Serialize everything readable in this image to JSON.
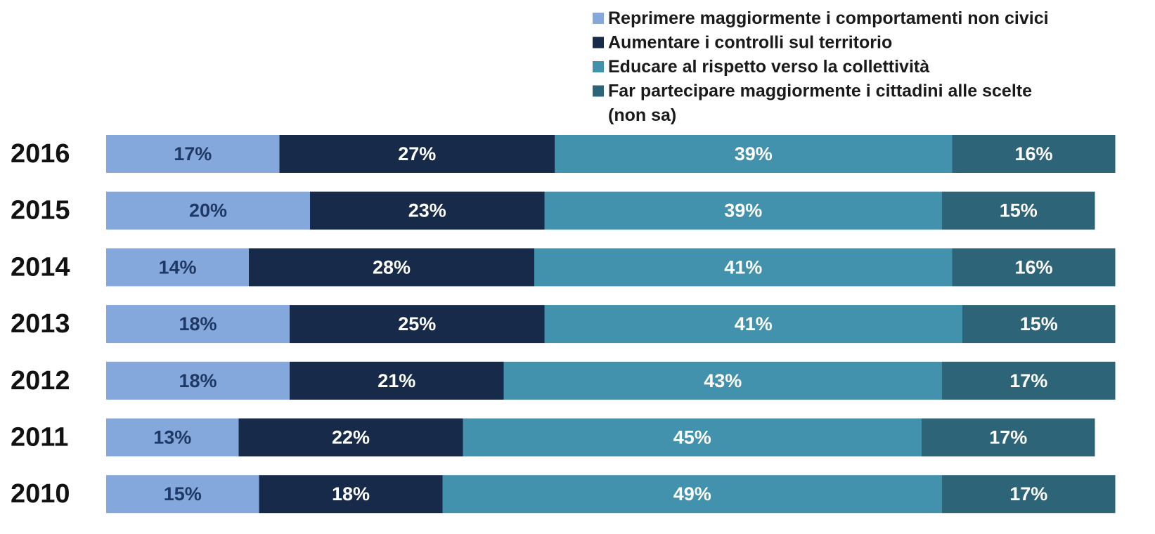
{
  "chart_data": {
    "type": "bar",
    "orientation": "horizontal",
    "stacked": true,
    "categories": [
      "2016",
      "2015",
      "2014",
      "2013",
      "2012",
      "2011",
      "2010"
    ],
    "series": [
      {
        "name": "Reprimere maggiormente i comportamenti non civici",
        "color": "#85a8dc",
        "label_color": "#1f3864",
        "values": [
          17,
          20,
          14,
          18,
          18,
          13,
          15
        ],
        "value_labels": [
          "17%",
          "20%",
          "14%",
          "18%",
          "18%",
          "13%",
          "15%"
        ]
      },
      {
        "name": "Aumentare i controlli sul territorio",
        "color": "#172a4a",
        "label_color": "#ffffff",
        "values": [
          27,
          23,
          28,
          25,
          21,
          22,
          18
        ],
        "value_labels": [
          "27%",
          "23%",
          "28%",
          "25%",
          "21%",
          "22%",
          "18%"
        ]
      },
      {
        "name": "Educare al rispetto verso la collettività",
        "color": "#4291ad",
        "label_color": "#ffffff",
        "values": [
          39,
          39,
          41,
          41,
          43,
          45,
          49
        ],
        "value_labels": [
          "39%",
          "39%",
          "41%",
          "41%",
          "43%",
          "45%",
          "49%"
        ]
      },
      {
        "name": "Far partecipare maggiormente i cittadini alle scelte",
        "color": "#2d6478",
        "label_color": "#ffffff",
        "values": [
          16,
          15,
          16,
          15,
          17,
          17,
          17
        ],
        "value_labels": [
          "16%",
          "15%",
          "16%",
          "15%",
          "17%",
          "17%",
          "17%"
        ]
      }
    ],
    "legend_extra": "(non sa)",
    "xlim": [
      0,
      100
    ]
  }
}
